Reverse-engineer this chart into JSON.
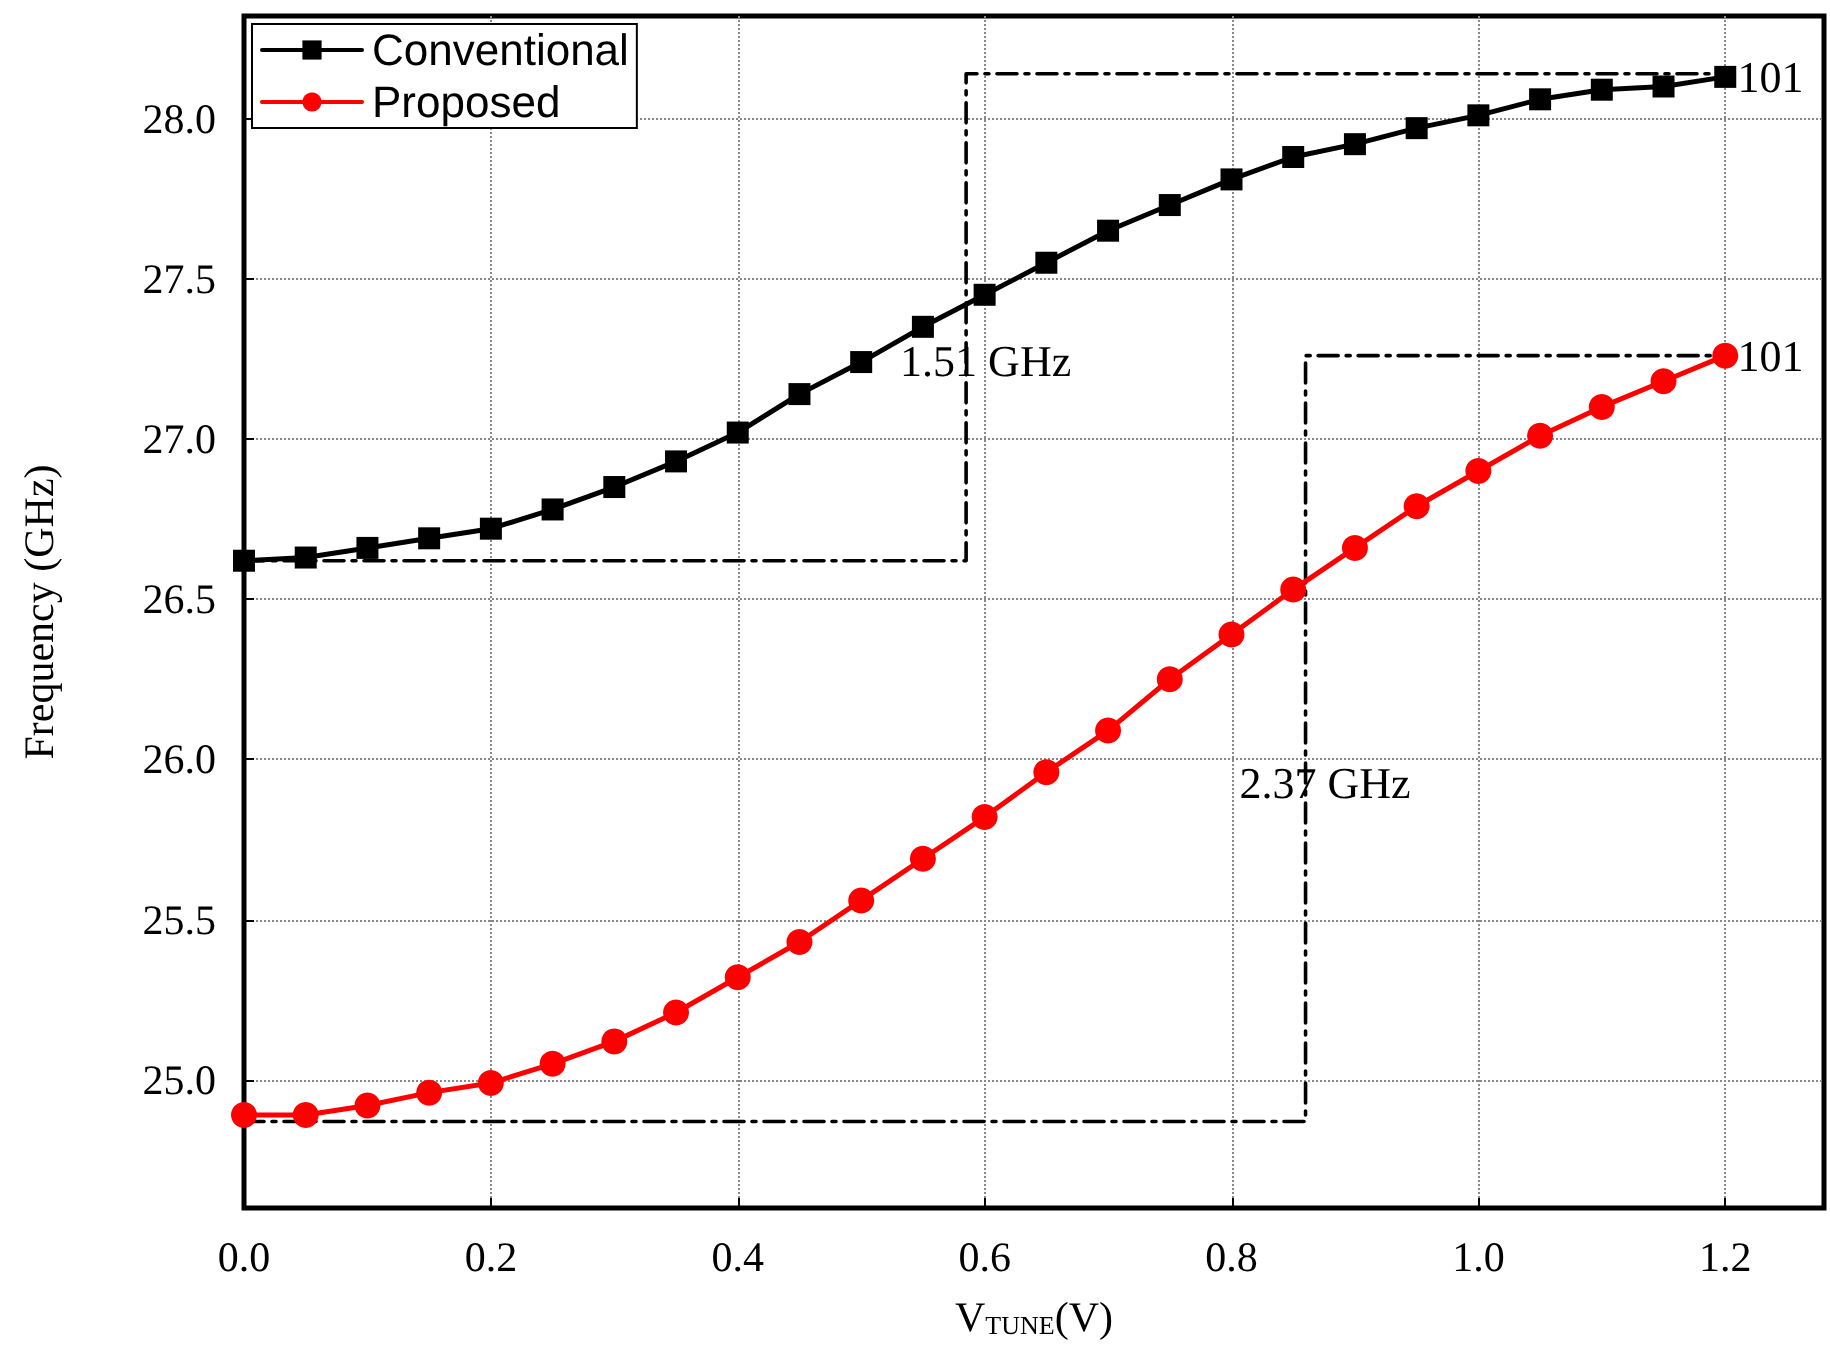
{
  "chart_data": {
    "type": "line",
    "xlabel": "V$_{TUNE}$(V)",
    "ylabel": "Frequency (GHz)",
    "xlim": [
      0,
      1.28
    ],
    "ylim": [
      24.6,
      28.32
    ],
    "xticks": [
      {
        "value": 0,
        "label": "0.0"
      },
      {
        "value": 0.2,
        "label": "0.2"
      },
      {
        "value": 0.4,
        "label": "0.4"
      },
      {
        "value": 0.6,
        "label": "0.6"
      },
      {
        "value": 0.8,
        "label": "0.8"
      },
      {
        "value": 1.0,
        "label": "1.0"
      },
      {
        "value": 1.2,
        "label": "1.2"
      }
    ],
    "yticks": [
      {
        "value": 25,
        "label": "25.0"
      },
      {
        "value": 25.5,
        "label": "25.5"
      },
      {
        "value": 26,
        "label": "26.0"
      },
      {
        "value": 26.5,
        "label": "26.5"
      },
      {
        "value": 27,
        "label": "27.0"
      },
      {
        "value": 27.5,
        "label": "27.5"
      },
      {
        "value": 28,
        "label": "28.0"
      }
    ],
    "grid": true,
    "legend": "top left",
    "x": [
      0,
      0.05,
      0.1,
      0.15,
      0.2,
      0.25,
      0.3,
      0.35,
      0.4,
      0.45,
      0.5,
      0.55,
      0.6,
      0.65,
      0.7,
      0.75,
      0.8,
      0.85,
      0.9,
      0.95,
      1.0,
      1.05,
      1.1,
      1.15,
      1.2
    ],
    "series": [
      {
        "name": "Conventional",
        "color": "#000000",
        "marker": "square",
        "values": [
          26.62,
          26.63,
          26.66,
          26.69,
          26.72,
          26.78,
          26.85,
          26.93,
          27.02,
          27.14,
          27.24,
          27.35,
          27.45,
          27.55,
          27.65,
          27.73,
          27.81,
          27.88,
          27.92,
          27.97,
          28.01,
          28.06,
          28.09,
          28.1,
          28.13
        ]
      },
      {
        "name": "Proposed",
        "color": "#ff0000",
        "marker": "circle",
        "values": [
          24.89,
          24.89,
          24.92,
          24.96,
          24.99,
          25.05,
          25.12,
          25.21,
          25.32,
          25.43,
          25.56,
          25.69,
          25.82,
          25.96,
          26.09,
          26.25,
          26.39,
          26.53,
          26.66,
          26.79,
          26.9,
          27.01,
          27.1,
          27.18,
          27.26
        ]
      },
      {
        "color": "#000000",
        "marker": "none",
        "line_style": "dashed",
        "x": [
          0,
          0.585,
          0.585,
          1.2
        ],
        "values": [
          26.62,
          26.62,
          28.14,
          28.14
        ]
      },
      {
        "color": "#000000",
        "marker": "none",
        "line_style": "dashed",
        "x": [
          0,
          0.86,
          0.86,
          1.2
        ],
        "values": [
          24.87,
          24.87,
          27.26,
          27.26
        ]
      }
    ],
    "annotations": [
      "1.51 GHz",
      "2.37 GHz",
      {
        "text": "101",
        "x": 1.21,
        "y": 28.13
      },
      {
        "text": "101",
        "x": 1.21,
        "y": 27.26
      }
    ]
  }
}
